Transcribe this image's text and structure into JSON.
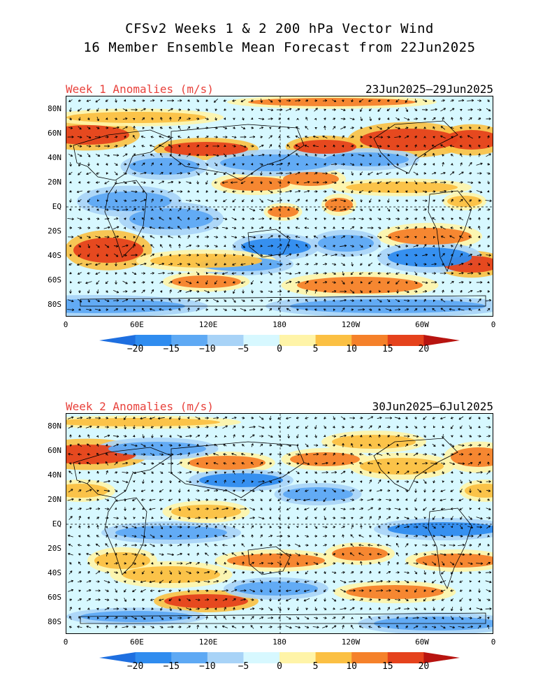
{
  "title": {
    "line1": "CFSv2 Weeks 1 & 2 200 hPa Vector Wind",
    "line2": "16 Member Ensemble Mean Forecast from 22Jun2025"
  },
  "panels": [
    {
      "label": "Week 1 Anomalies (m/s)",
      "dates": "23Jun2025–29Jun2025"
    },
    {
      "label": "Week 2 Anomalies (m/s)",
      "dates": "30Jun2025–6Jul2025"
    }
  ],
  "lat_ticks": [
    "80N",
    "60N",
    "40N",
    "20N",
    "EQ",
    "20S",
    "40S",
    "60S",
    "80S"
  ],
  "lon_ticks": [
    "0",
    "60E",
    "120E",
    "180",
    "120W",
    "60W",
    "0"
  ],
  "colorbar": {
    "labels": [
      "−20",
      "−15",
      "−10",
      "−5",
      "0",
      "5",
      "10",
      "15",
      "20"
    ],
    "colors": [
      "#1e6fe0",
      "#2f8cef",
      "#5ea9f4",
      "#a8d3f7",
      "#d7f8ff",
      "#fff4a8",
      "#fbc043",
      "#f5812a",
      "#e5421c",
      "#b81410"
    ]
  },
  "colors": {
    "label_red": "#e8413b"
  }
}
